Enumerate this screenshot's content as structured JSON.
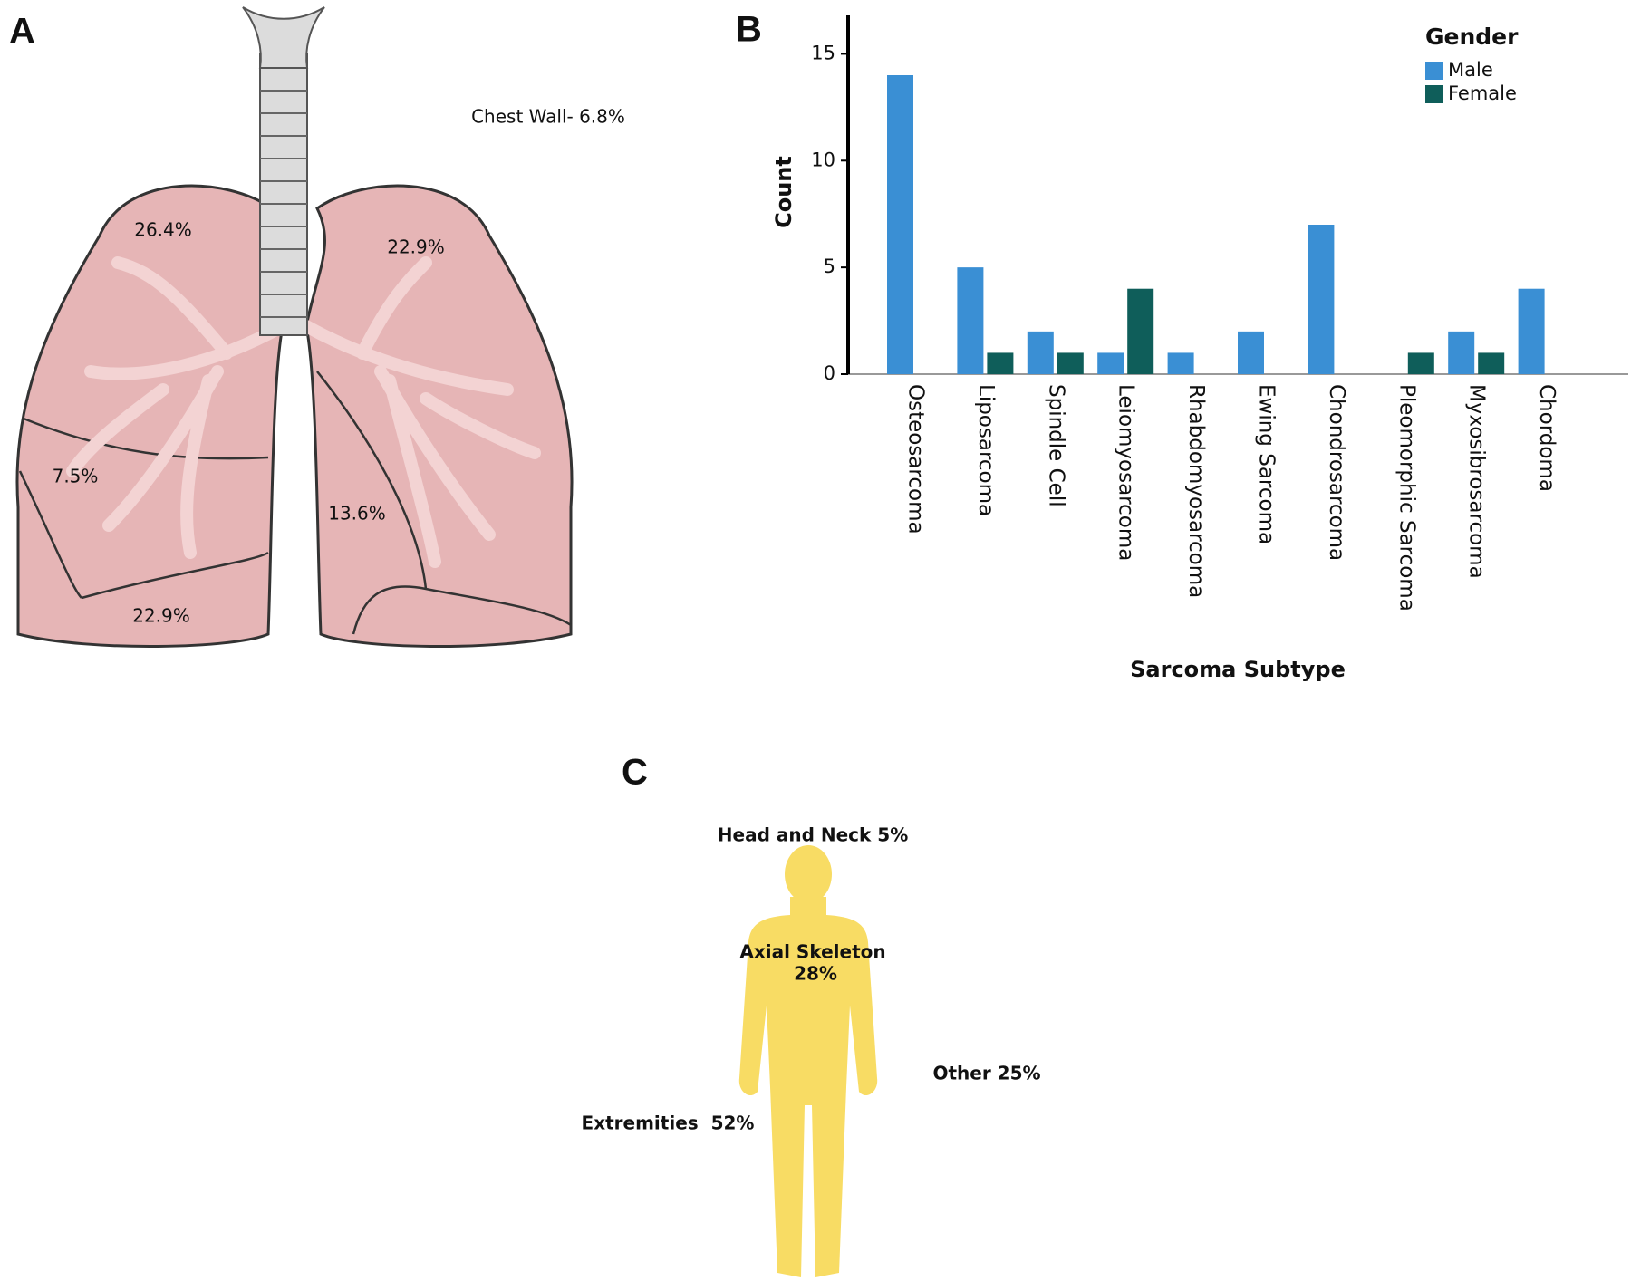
{
  "panel_labels": [
    "A",
    "B",
    "C"
  ],
  "lung_diagram": {
    "annotations": [
      "Chest Wall- 6.8%",
      "26.4%",
      "22.9%",
      "7.5%",
      "13.6%",
      "22.9%"
    ]
  },
  "chart_data": {
    "type": "bar",
    "x_label": "Sarcoma Subtype",
    "y_label": "Count",
    "legend_title": "Gender",
    "legend": "top-right",
    "categories": [
      "Osteosarcoma",
      "Liposarcoma",
      "Spindle Cell",
      "Leiomyosarcoma",
      "Rhabdomyosarcoma",
      "Ewing Sarcoma",
      "Chondrosarcoma",
      "Pleomorphic Sarcoma",
      "Myxosibrosarcoma",
      "Chordoma"
    ],
    "series": [
      {
        "name": "Male",
        "color": "#3a8fd4",
        "values": [
          14,
          5,
          2,
          1,
          1,
          2,
          7,
          0,
          2,
          4
        ]
      },
      {
        "name": "Female",
        "color": "#0f5e5a",
        "values": [
          0,
          1,
          1,
          4,
          0,
          0,
          0,
          1,
          1,
          0
        ]
      }
    ],
    "ylim": [
      0,
      16.8
    ],
    "yticks": [
      0,
      5,
      10,
      15
    ]
  },
  "body_diagram": {
    "annotations": [
      "Head and Neck 5%",
      "Axial Skeleton",
      "28%",
      "Other 25%",
      "Extremities  52%"
    ]
  }
}
